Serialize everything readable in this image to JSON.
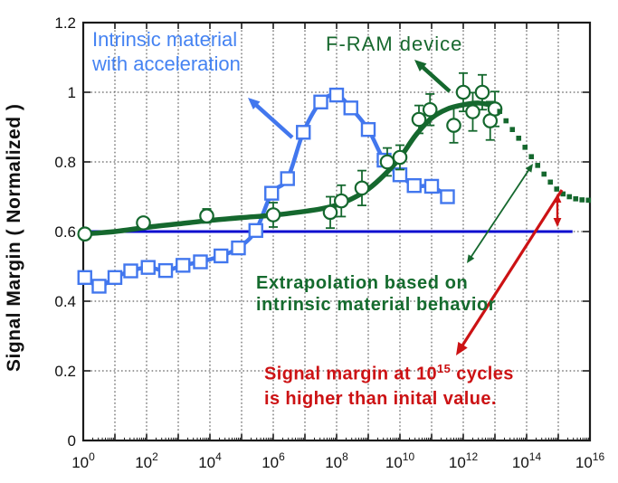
{
  "y_axis": {
    "label": "Signal Margin ( Normalized )",
    "tick_labels": [
      "0",
      "0.2",
      "0.4",
      "0.6",
      "0.8",
      "1",
      "1.2"
    ],
    "tick_values": [
      0,
      0.2,
      0.4,
      0.6,
      0.8,
      1,
      1.2
    ]
  },
  "x_axis": {
    "base": "10",
    "tick_exponents": [
      0,
      2,
      4,
      6,
      8,
      10,
      12,
      14,
      16
    ]
  },
  "annotations": {
    "intrinsic": {
      "line1": "Intrinsic material",
      "line2": "with acceleration",
      "color": "#4583f2"
    },
    "fram": {
      "text": "F-RAM device",
      "color": "#17682e"
    },
    "extrapolation": {
      "line1": "Extrapolation based on",
      "line2": "intrinsic material behavior",
      "color": "#156b2e"
    },
    "red": {
      "line1_prefix": "Signal margin at 10",
      "line1_sup": "15",
      "line1_suffix": " cycles",
      "line2": "is higher than inital value.",
      "color": "#cc1214"
    }
  },
  "chart_data": {
    "type": "line",
    "x_scale": "log10",
    "x_range_exponents": [
      0,
      16
    ],
    "ylim": [
      0,
      1.2
    ],
    "ylabel": "Signal Margin ( Normalized )",
    "grid": "dotted gridlines at every decade and every 0.2",
    "colors": {
      "intrinsic_series": "#4277ee",
      "fram_series": "#15682e",
      "reference_line": "#0b0bcf",
      "warning_red": "#cc1214",
      "axis": "#1a1a1a",
      "grid": "#3c3c3c"
    },
    "series": [
      {
        "name": "Intrinsic material with acceleration",
        "marker": "open-square",
        "color": "#4277ee",
        "points_log10x_y": [
          [
            0.05,
            0.468
          ],
          [
            0.5,
            0.443
          ],
          [
            1.0,
            0.468
          ],
          [
            1.5,
            0.487
          ],
          [
            2.05,
            0.497
          ],
          [
            2.6,
            0.488
          ],
          [
            3.15,
            0.503
          ],
          [
            3.7,
            0.513
          ],
          [
            4.35,
            0.53
          ],
          [
            4.9,
            0.553
          ],
          [
            5.45,
            0.603
          ],
          [
            5.95,
            0.71
          ],
          [
            6.45,
            0.752
          ],
          [
            6.95,
            0.885
          ],
          [
            7.5,
            0.972
          ],
          [
            8.0,
            0.992
          ],
          [
            8.45,
            0.955
          ],
          [
            9.0,
            0.893
          ],
          [
            9.5,
            0.805
          ],
          [
            10.0,
            0.763
          ],
          [
            10.45,
            0.732
          ],
          [
            11.0,
            0.73
          ],
          [
            11.5,
            0.7
          ]
        ]
      },
      {
        "name": "F-RAM device",
        "marker": "open-circle-with-error-bars",
        "color": "#15682e",
        "trend_line_log10x_y": [
          [
            0,
            0.593
          ],
          [
            1,
            0.6
          ],
          [
            2,
            0.612
          ],
          [
            3,
            0.622
          ],
          [
            4,
            0.632
          ],
          [
            5,
            0.64
          ],
          [
            6,
            0.647
          ],
          [
            7,
            0.658
          ],
          [
            7.5,
            0.665
          ],
          [
            8,
            0.676
          ],
          [
            8.5,
            0.695
          ],
          [
            9,
            0.722
          ],
          [
            9.5,
            0.762
          ],
          [
            10,
            0.812
          ],
          [
            10.5,
            0.877
          ],
          [
            11,
            0.926
          ],
          [
            11.5,
            0.952
          ],
          [
            12,
            0.964
          ],
          [
            12.5,
            0.969
          ],
          [
            13,
            0.96
          ]
        ],
        "points_log10x_y_err": [
          [
            0.05,
            0.593,
            0.015
          ],
          [
            1.9,
            0.625,
            0.015
          ],
          [
            3.9,
            0.645,
            0.02
          ],
          [
            6.0,
            0.648,
            0.035
          ],
          [
            7.8,
            0.655,
            0.045
          ],
          [
            8.15,
            0.688,
            0.045
          ],
          [
            8.8,
            0.725,
            0.05
          ],
          [
            9.6,
            0.8,
            0.04
          ],
          [
            10.0,
            0.813,
            0.035
          ],
          [
            10.6,
            0.922,
            0.04
          ],
          [
            10.95,
            0.95,
            0.045
          ],
          [
            11.7,
            0.905,
            0.05
          ],
          [
            12.0,
            1.0,
            0.055
          ],
          [
            12.3,
            0.944,
            0.055
          ],
          [
            12.6,
            1.0,
            0.05
          ],
          [
            12.85,
            0.918,
            0.055
          ],
          [
            13.0,
            0.952,
            0.05
          ]
        ],
        "extrapolation_dots_log10x_y": [
          [
            13.15,
            0.945
          ],
          [
            13.35,
            0.918
          ],
          [
            13.55,
            0.893
          ],
          [
            13.75,
            0.868
          ],
          [
            13.95,
            0.842
          ],
          [
            14.15,
            0.815
          ],
          [
            14.35,
            0.79
          ],
          [
            14.55,
            0.765
          ],
          [
            14.75,
            0.742
          ],
          [
            14.95,
            0.722
          ],
          [
            15.15,
            0.708
          ],
          [
            15.35,
            0.7
          ],
          [
            15.55,
            0.694
          ],
          [
            15.75,
            0.691
          ],
          [
            15.95,
            0.69
          ]
        ]
      },
      {
        "name": "Initial value reference line",
        "type": "hline",
        "color": "#0b0bcf",
        "value": 0.6,
        "x_span_exponents": [
          0,
          15.45
        ]
      }
    ]
  }
}
